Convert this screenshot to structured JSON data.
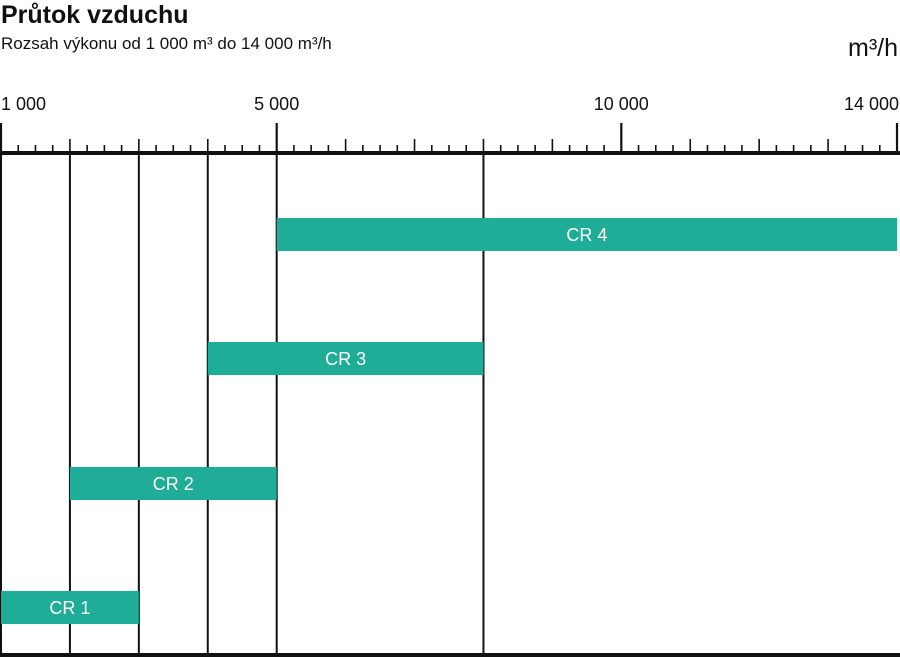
{
  "header": {
    "title": "Průtok vzduchu",
    "subtitle": "Rozsah výkonu od 1 000 m³ do 14 000 m³/h",
    "unit": "m³/h"
  },
  "chart_data": {
    "type": "bar",
    "orientation": "horizontal-range",
    "title": "Průtok vzduchu",
    "subtitle": "Rozsah výkonu od 1 000 m³ do 14 000 m³/h",
    "unit": "m³/h",
    "xlim": [
      1000,
      14000
    ],
    "major_ticks": [
      {
        "value": 1000,
        "label": "1 000"
      },
      {
        "value": 5000,
        "label": "5 000"
      },
      {
        "value": 10000,
        "label": "10 000"
      },
      {
        "value": 14000,
        "label": "14 000"
      }
    ],
    "minor_tick_step": 250,
    "reference_lines": [
      2000,
      3000,
      4000,
      5000,
      8000
    ],
    "bar_color": "#1fad98",
    "series": [
      {
        "name": "CR 1",
        "start": 1000,
        "end": 3000
      },
      {
        "name": "CR 2",
        "start": 2000,
        "end": 5000
      },
      {
        "name": "CR 3",
        "start": 4000,
        "end": 8000
      },
      {
        "name": "CR 4",
        "start": 5000,
        "end": 14000
      }
    ]
  }
}
